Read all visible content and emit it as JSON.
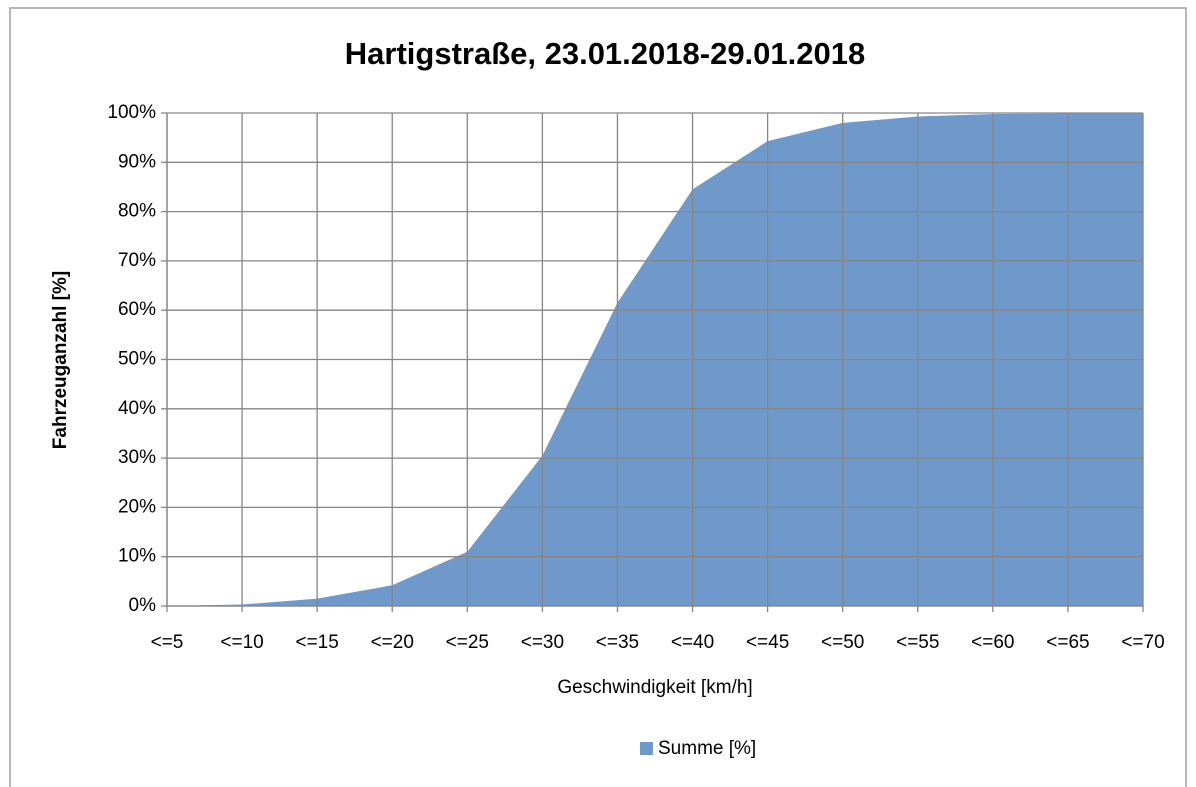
{
  "chart_data": {
    "type": "area",
    "title": "Hartigstraße, 23.01.2018-29.01.2018",
    "x_label": "Geschwindigkeit [km/h]",
    "y_label": "Fahrzeuganzahl  [%]",
    "categories": [
      "<=5",
      "<=10",
      "<=15",
      "<=20",
      "<=25",
      "<=30",
      "<=35",
      "<=40",
      "<=45",
      "<=50",
      "<=55",
      "<=60",
      "<=65",
      "<=70"
    ],
    "series": [
      {
        "name": "Summe [%]",
        "color": "#7099cb",
        "values": [
          0,
          0.3,
          1.5,
          4.2,
          11,
          30.5,
          61.5,
          84.5,
          94.3,
          98,
          99.3,
          99.8,
          99.9,
          100
        ]
      }
    ],
    "ylim": [
      0,
      100
    ],
    "yticks": [
      {
        "value": 0,
        "label": "0%"
      },
      {
        "value": 10,
        "label": "10%"
      },
      {
        "value": 20,
        "label": "20%"
      },
      {
        "value": 30,
        "label": "30%"
      },
      {
        "value": 40,
        "label": "40%"
      },
      {
        "value": 50,
        "label": "50%"
      },
      {
        "value": 60,
        "label": "60%"
      },
      {
        "value": 70,
        "label": "70%"
      },
      {
        "value": 80,
        "label": "80%"
      },
      {
        "value": 90,
        "label": "90%"
      },
      {
        "value": 100,
        "label": "100%"
      }
    ],
    "grid": true,
    "legend": "bottom"
  }
}
